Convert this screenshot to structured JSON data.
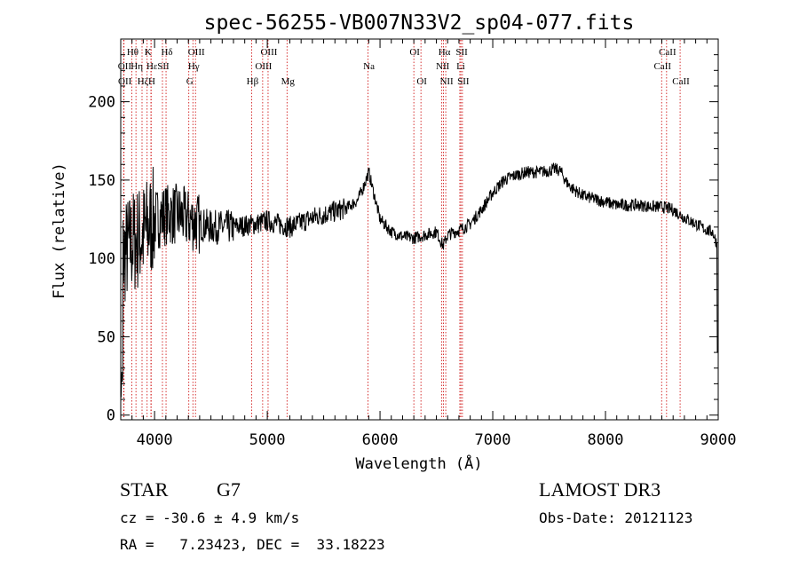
{
  "chart_data": {
    "type": "line",
    "title": "spec-56255-VB007N33V2_sp04-077.fits",
    "xlabel": "Wavelength (Å)",
    "ylabel": "Flux (relative)",
    "xlim": [
      3700,
      9000
    ],
    "ylim": [
      -3,
      240
    ],
    "x_ticks": [
      4000,
      5000,
      6000,
      7000,
      8000,
      9000
    ],
    "x_tick_labels": [
      "4000",
      "5000",
      "6000",
      "7000",
      "8000",
      "9000"
    ],
    "y_ticks": [
      0,
      50,
      100,
      150,
      200
    ],
    "y_tick_labels": [
      "0",
      "50",
      "100",
      "150",
      "200"
    ],
    "continuum": {
      "x": [
        3700,
        3800,
        3900,
        4000,
        4100,
        4200,
        4300,
        4400,
        4500,
        4600,
        4700,
        4800,
        4900,
        5000,
        5100,
        5200,
        5300,
        5400,
        5500,
        5600,
        5700,
        5800,
        5850,
        5900,
        5950,
        6000,
        6100,
        6200,
        6300,
        6400,
        6500,
        6560,
        6600,
        6700,
        6800,
        6900,
        7000,
        7100,
        7200,
        7300,
        7400,
        7500,
        7550,
        7600,
        7650,
        7700,
        7800,
        7900,
        8000,
        8100,
        8200,
        8300,
        8400,
        8500,
        8600,
        8700,
        8800,
        8900,
        8950,
        8995
      ],
      "y": [
        100,
        110,
        115,
        125,
        128,
        128,
        125,
        122,
        120,
        120,
        120,
        121,
        122,
        124,
        122,
        120,
        123,
        126,
        128,
        130,
        132,
        137,
        145,
        155,
        140,
        125,
        117,
        114,
        113,
        115,
        117,
        108,
        115,
        118,
        122,
        131,
        142,
        150,
        153,
        155,
        155,
        156,
        157,
        156,
        149,
        145,
        140,
        138,
        136,
        134,
        134,
        134,
        133,
        133,
        131,
        126,
        122,
        118,
        117,
        108
      ]
    },
    "spectral_lines": [
      {
        "label": "Hθ",
        "wavelength": 3798,
        "row": 1
      },
      {
        "label": "OII",
        "wavelength": 3727,
        "row": 2
      },
      {
        "label": "Hη",
        "wavelength": 3835,
        "row": 2
      },
      {
        "label": "OII",
        "wavelength": 3729,
        "row": 3
      },
      {
        "label": "Hζ",
        "wavelength": 3889,
        "row": 3
      },
      {
        "label": "K",
        "wavelength": 3934,
        "row": 1
      },
      {
        "label": "Hε",
        "wavelength": 3970,
        "row": 2
      },
      {
        "label": "H",
        "wavelength": 3968,
        "row": 3
      },
      {
        "label": "SII",
        "wavelength": 4070,
        "row": 2
      },
      {
        "label": "Hδ",
        "wavelength": 4102,
        "row": 1
      },
      {
        "label": "OIII",
        "wavelength": 4363,
        "row": 1
      },
      {
        "label": "Hγ",
        "wavelength": 4340,
        "row": 2
      },
      {
        "label": "G",
        "wavelength": 4304,
        "row": 3
      },
      {
        "label": "Hβ",
        "wavelength": 4861,
        "row": 3
      },
      {
        "label": "OIII",
        "wavelength": 5007,
        "row": 1
      },
      {
        "label": "OIII",
        "wavelength": 4959,
        "row": 2
      },
      {
        "label": "Mg",
        "wavelength": 5175,
        "row": 3
      },
      {
        "label": "Na",
        "wavelength": 5894,
        "row": 2
      },
      {
        "label": "OI",
        "wavelength": 6300,
        "row": 1
      },
      {
        "label": "OI",
        "wavelength": 6363,
        "row": 3
      },
      {
        "label": "Hα",
        "wavelength": 6563,
        "row": 1
      },
      {
        "label": "NII",
        "wavelength": 6548,
        "row": 2
      },
      {
        "label": "NII",
        "wavelength": 6583,
        "row": 3
      },
      {
        "label": "SII",
        "wavelength": 6717,
        "row": 1
      },
      {
        "label": "Li",
        "wavelength": 6708,
        "row": 2
      },
      {
        "label": "SII",
        "wavelength": 6731,
        "row": 3
      },
      {
        "label": "CaII",
        "wavelength": 8542,
        "row": 1
      },
      {
        "label": "CaII",
        "wavelength": 8498,
        "row": 2
      },
      {
        "label": "CaII",
        "wavelength": 8662,
        "row": 3
      }
    ]
  },
  "info": {
    "object_class": "STAR",
    "subclass": "G7",
    "survey": "LAMOST DR3",
    "cz": "cz = -30.6 ± 4.9 km/s",
    "obs_date": "Obs-Date: 20121123",
    "coords": "RA =   7.23423, DEC =  33.18223"
  },
  "colors": {
    "line_marker": "#cc0000",
    "spectrum": "#000000"
  }
}
